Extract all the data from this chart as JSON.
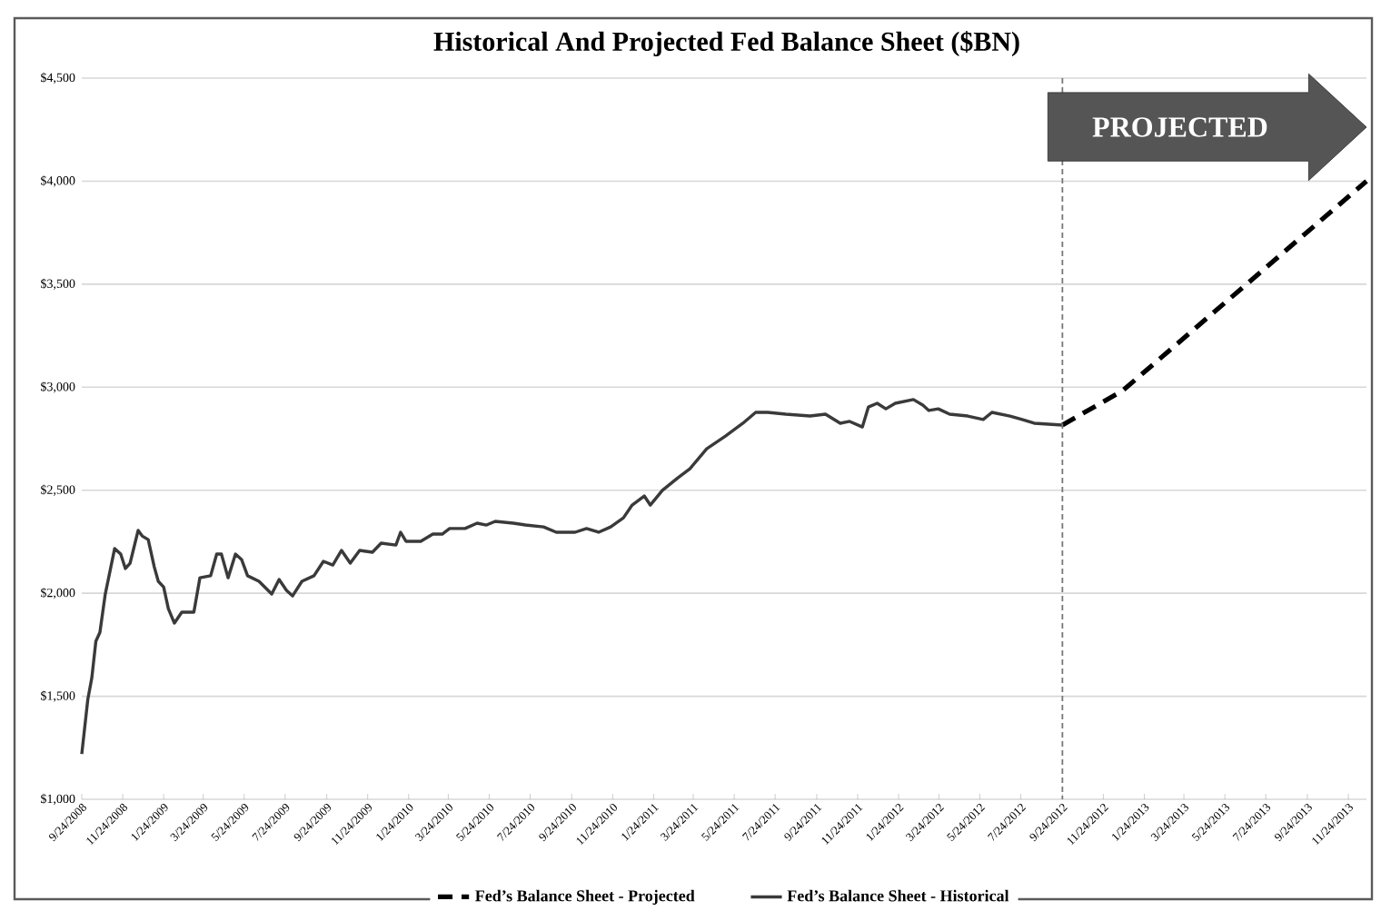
{
  "chart_data": {
    "type": "line",
    "title": "Historical And Projected Fed Balance Sheet ($BN)",
    "series": [
      {
        "name": "Fed’s Balance Sheet - Projected",
        "color": "#000000",
        "line_style": "dashed",
        "x": [
          "2012-09-24",
          "2012-12-23",
          "2013-12-21"
        ],
        "values": [
          2816,
          2984,
          4000
        ]
      },
      {
        "name": "Fed’s Balance Sheet - Historical",
        "color": "#3a3a3a",
        "line_style": "solid",
        "x": [
          "2008-09-24",
          "2008-10-03",
          "2008-10-09",
          "2008-10-15",
          "2008-10-21",
          "2008-10-29",
          "2008-11-12",
          "2008-11-21",
          "2008-11-28",
          "2008-12-05",
          "2008-12-17",
          "2008-12-23",
          "2009-01-01",
          "2009-01-10",
          "2009-01-16",
          "2009-01-24",
          "2009-01-31",
          "2009-02-09",
          "2009-02-20",
          "2009-03-10",
          "2009-03-19",
          "2009-04-04",
          "2009-04-13",
          "2009-04-20",
          "2009-04-30",
          "2009-05-11",
          "2009-05-20",
          "2009-05-29",
          "2009-06-15",
          "2009-07-04",
          "2009-07-15",
          "2009-07-26",
          "2009-08-04",
          "2009-08-18",
          "2009-09-05",
          "2009-09-19",
          "2009-10-03",
          "2009-10-16",
          "2009-10-29",
          "2009-11-12",
          "2009-12-01",
          "2009-12-14",
          "2010-01-05",
          "2010-01-12",
          "2010-01-20",
          "2010-02-11",
          "2010-03-01",
          "2010-03-15",
          "2010-03-26",
          "2010-04-18",
          "2010-05-06",
          "2010-05-20",
          "2010-06-02",
          "2010-06-29",
          "2010-07-17",
          "2010-08-13",
          "2010-09-01",
          "2010-09-29",
          "2010-10-16",
          "2010-11-03",
          "2010-11-21",
          "2010-12-10",
          "2010-12-23",
          "2011-01-10",
          "2011-01-19",
          "2011-02-06",
          "2011-03-01",
          "2011-03-19",
          "2011-04-13",
          "2011-05-11",
          "2011-06-06",
          "2011-06-25",
          "2011-07-13",
          "2011-08-09",
          "2011-09-14",
          "2011-10-07",
          "2011-10-29",
          "2011-11-12",
          "2011-12-01",
          "2011-12-10",
          "2011-12-23",
          "2012-01-05",
          "2012-01-19",
          "2012-02-15",
          "2012-02-29",
          "2012-03-09",
          "2012-03-23",
          "2012-04-09",
          "2012-05-06",
          "2012-05-29",
          "2012-06-11",
          "2012-07-08",
          "2012-07-26",
          "2012-08-13",
          "2012-09-24"
        ],
        "values": [
          1220,
          1485,
          1590,
          1767,
          1810,
          1996,
          2217,
          2190,
          2120,
          2146,
          2305,
          2278,
          2260,
          2128,
          2058,
          2030,
          1925,
          1855,
          1908,
          1908,
          2075,
          2085,
          2190,
          2190,
          2075,
          2190,
          2164,
          2085,
          2058,
          1996,
          2067,
          2014,
          1987,
          2058,
          2085,
          2155,
          2137,
          2208,
          2146,
          2208,
          2199,
          2243,
          2234,
          2296,
          2252,
          2252,
          2287,
          2287,
          2314,
          2314,
          2340,
          2331,
          2349,
          2340,
          2331,
          2322,
          2296,
          2296,
          2314,
          2296,
          2322,
          2366,
          2428,
          2472,
          2428,
          2499,
          2560,
          2604,
          2701,
          2763,
          2825,
          2878,
          2878,
          2869,
          2860,
          2869,
          2825,
          2834,
          2807,
          2904,
          2922,
          2895,
          2922,
          2940,
          2913,
          2887,
          2895,
          2869,
          2860,
          2843,
          2878,
          2860,
          2843,
          2825,
          2816
        ]
      }
    ],
    "xlim": [
      "2008-09-24",
      "2013-12-21"
    ],
    "xticks": [
      {
        "value": "2008-09-24",
        "label": "9/24/2008"
      },
      {
        "value": "2008-11-24",
        "label": "11/24/2008"
      },
      {
        "value": "2009-01-24",
        "label": "1/24/2009"
      },
      {
        "value": "2009-03-24",
        "label": "3/24/2009"
      },
      {
        "value": "2009-05-24",
        "label": "5/24/2009"
      },
      {
        "value": "2009-07-24",
        "label": "7/24/2009"
      },
      {
        "value": "2009-09-24",
        "label": "9/24/2009"
      },
      {
        "value": "2009-11-24",
        "label": "11/24/2009"
      },
      {
        "value": "2010-01-24",
        "label": "1/24/2010"
      },
      {
        "value": "2010-03-24",
        "label": "3/24/2010"
      },
      {
        "value": "2010-05-24",
        "label": "5/24/2010"
      },
      {
        "value": "2010-07-24",
        "label": "7/24/2010"
      },
      {
        "value": "2010-09-24",
        "label": "9/24/2010"
      },
      {
        "value": "2010-11-24",
        "label": "11/24/2010"
      },
      {
        "value": "2011-01-24",
        "label": "1/24/2011"
      },
      {
        "value": "2011-03-24",
        "label": "3/24/2011"
      },
      {
        "value": "2011-05-24",
        "label": "5/24/2011"
      },
      {
        "value": "2011-07-24",
        "label": "7/24/2011"
      },
      {
        "value": "2011-09-24",
        "label": "9/24/2011"
      },
      {
        "value": "2011-11-24",
        "label": "11/24/2011"
      },
      {
        "value": "2012-01-24",
        "label": "1/24/2012"
      },
      {
        "value": "2012-03-24",
        "label": "3/24/2012"
      },
      {
        "value": "2012-05-24",
        "label": "5/24/2012"
      },
      {
        "value": "2012-07-24",
        "label": "7/24/2012"
      },
      {
        "value": "2012-09-24",
        "label": "9/24/2012"
      },
      {
        "value": "2012-11-24",
        "label": "11/24/2012"
      },
      {
        "value": "2013-01-24",
        "label": "1/24/2013"
      },
      {
        "value": "2013-03-24",
        "label": "3/24/2013"
      },
      {
        "value": "2013-05-24",
        "label": "5/24/2013"
      },
      {
        "value": "2013-07-24",
        "label": "7/24/2013"
      },
      {
        "value": "2013-09-24",
        "label": "9/24/2013"
      },
      {
        "value": "2013-11-24",
        "label": "11/24/2013"
      }
    ],
    "ylim": [
      1000,
      4500
    ],
    "yticks": [
      {
        "value": 1000,
        "label": "$1,000"
      },
      {
        "value": 1500,
        "label": "$1,500"
      },
      {
        "value": 2000,
        "label": "$2,000"
      },
      {
        "value": 2500,
        "label": "$2,500"
      },
      {
        "value": 3000,
        "label": "$3,000"
      },
      {
        "value": 3500,
        "label": "$3,500"
      },
      {
        "value": 4000,
        "label": "$4,000"
      },
      {
        "value": 4500,
        "label": "$4,500"
      }
    ],
    "ref_lines": [
      {
        "axis": "x",
        "value": "2012-09-24",
        "color": "#777777",
        "line_style": "dashed"
      }
    ],
    "annotations": [
      "PROJECTED"
    ],
    "grid": "y",
    "legend": "bottom"
  }
}
